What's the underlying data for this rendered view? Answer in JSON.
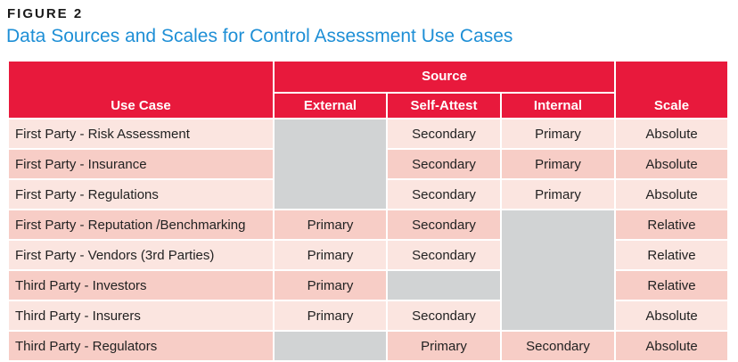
{
  "figure": {
    "label": "FIGURE 2",
    "title": "Data Sources and Scales for Control Assessment Use Cases"
  },
  "table": {
    "headers": {
      "use_case": "Use Case",
      "source": "Source",
      "external": "External",
      "self_attest": "Self-Attest",
      "internal": "Internal",
      "scale": "Scale"
    },
    "rows": [
      {
        "use_case": "First Party - Risk Assessment",
        "external": "",
        "self_attest": "Secondary",
        "internal": "Primary",
        "scale": "Absolute"
      },
      {
        "use_case": "First Party - Insurance",
        "external": "",
        "self_attest": "Secondary",
        "internal": "Primary",
        "scale": "Absolute"
      },
      {
        "use_case": "First Party - Regulations",
        "external": "",
        "self_attest": "Secondary",
        "internal": "Primary",
        "scale": "Absolute"
      },
      {
        "use_case": "First Party - Reputation /Benchmarking",
        "external": "Primary",
        "self_attest": "Secondary",
        "internal": "",
        "scale": "Relative"
      },
      {
        "use_case": "First Party - Vendors (3rd Parties)",
        "external": "Primary",
        "self_attest": "Secondary",
        "internal": "",
        "scale": "Relative"
      },
      {
        "use_case": "Third Party - Investors",
        "external": "Primary",
        "self_attest": "",
        "internal": "",
        "scale": "Relative"
      },
      {
        "use_case": "Third Party - Insurers",
        "external": "Primary",
        "self_attest": "Secondary",
        "internal": "",
        "scale": "Absolute"
      },
      {
        "use_case": "Third Party - Regulators",
        "external": "",
        "self_attest": "Primary",
        "internal": "Secondary",
        "scale": "Absolute"
      }
    ]
  },
  "colors": {
    "header_red": "#e8193c",
    "title_blue": "#1e8fd6",
    "row_light": "#fbe5e0",
    "row_dark": "#f7cdc6",
    "empty_gray": "#d1d3d4"
  }
}
